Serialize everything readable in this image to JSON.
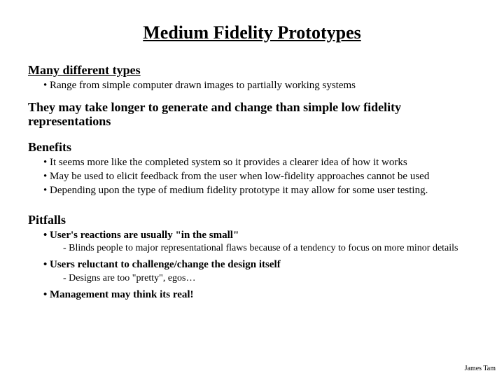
{
  "title": "Medium Fidelity Prototypes",
  "section1": {
    "head": "Many different types",
    "bullets": [
      "Range from simple computer drawn images to partially working systems"
    ]
  },
  "paragraph": "They may take longer to generate and change than simple low fidelity representations",
  "section2": {
    "head": "Benefits",
    "bullets": [
      "It seems more like the completed system so it provides a clearer idea of how it works",
      "May be used to elicit feedback from the user when low-fidelity approaches cannot be used",
      "Depending upon the type of medium fidelity prototype it may allow for some user testing."
    ]
  },
  "section3": {
    "head": "Pitfalls",
    "items": [
      {
        "text": "User's reactions are usually \"in the small\"",
        "sub": "Blinds people to major representational flaws because of a tendency to focus on more minor details"
      },
      {
        "text": "Users reluctant to challenge/change the design itself",
        "sub": "Designs are too \"pretty\", egos…"
      },
      {
        "text": "Management may think its real!",
        "sub": null
      }
    ]
  },
  "footer": "James Tam",
  "colors": {
    "background": "#ffffff",
    "text": "#000000"
  },
  "typography": {
    "family": "Times New Roman",
    "title_size_pt": 26,
    "head_size_pt": 18,
    "bullet_size_pt": 15,
    "sub_size_pt": 14,
    "footer_size_pt": 10
  }
}
